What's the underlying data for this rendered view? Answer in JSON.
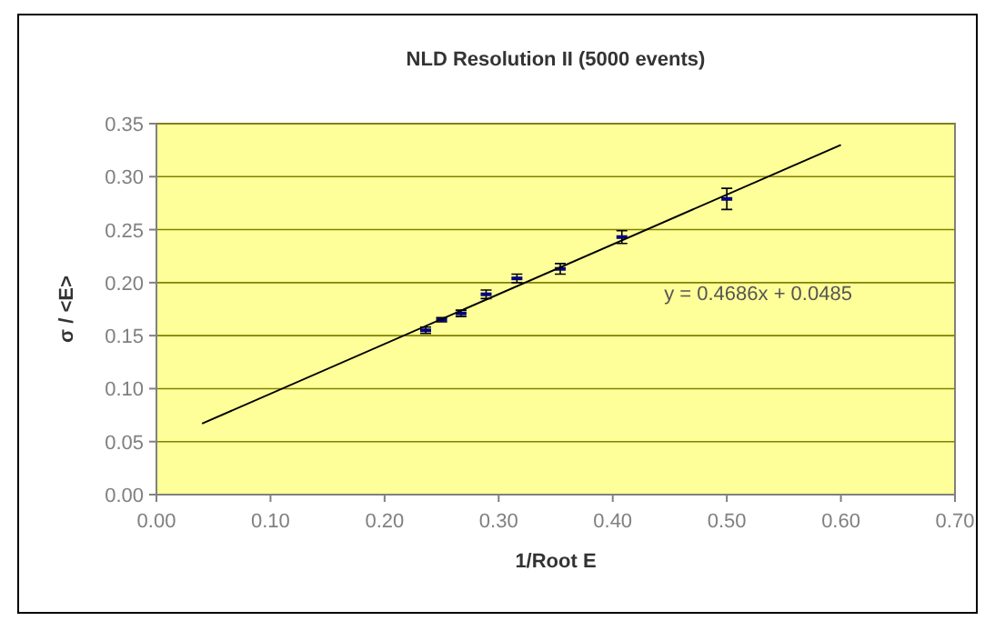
{
  "chart_data": {
    "type": "scatter",
    "title": "NLD Resolution II (5000 events)",
    "xlabel": "1/Root E",
    "ylabel": "σ / <E>",
    "xlim": [
      0,
      0.7
    ],
    "xticks": [
      {
        "value": 0,
        "label": "0.00"
      },
      {
        "value": 0.1,
        "label": "0.10"
      },
      {
        "value": 0.2,
        "label": "0.20"
      },
      {
        "value": 0.3,
        "label": "0.30"
      },
      {
        "value": 0.4,
        "label": "0.40"
      },
      {
        "value": 0.5,
        "label": "0.50"
      },
      {
        "value": 0.6,
        "label": "0.60"
      },
      {
        "value": 0.7,
        "label": "0.70"
      }
    ],
    "ylim": [
      0,
      0.35
    ],
    "yticks": [
      {
        "value": 0,
        "label": "0.00"
      },
      {
        "value": 0.05,
        "label": "0.05"
      },
      {
        "value": 0.1,
        "label": "0.10"
      },
      {
        "value": 0.15,
        "label": "0.15"
      },
      {
        "value": 0.2,
        "label": "0.20"
      },
      {
        "value": 0.25,
        "label": "0.25"
      },
      {
        "value": 0.3,
        "label": "0.30"
      },
      {
        "value": 0.35,
        "label": "0.35"
      }
    ],
    "grid": "y",
    "series": [
      {
        "marker": "square",
        "color": "#000080",
        "x": [
          0.236,
          0.25,
          0.267,
          0.289,
          0.316,
          0.354,
          0.408,
          0.5
        ],
        "values": [
          0.155,
          0.165,
          0.171,
          0.189,
          0.204,
          0.213,
          0.243,
          0.279
        ],
        "errors": [
          0.003,
          0.002,
          0.003,
          0.004,
          0.004,
          0.005,
          0.006,
          0.01
        ]
      },
      {
        "type": "line",
        "color": "#000000",
        "x": [
          0.04,
          0.6
        ],
        "values": [
          0.067,
          0.33
        ]
      }
    ],
    "annotations": [
      "y = 0.4686x + 0.0485"
    ]
  }
}
